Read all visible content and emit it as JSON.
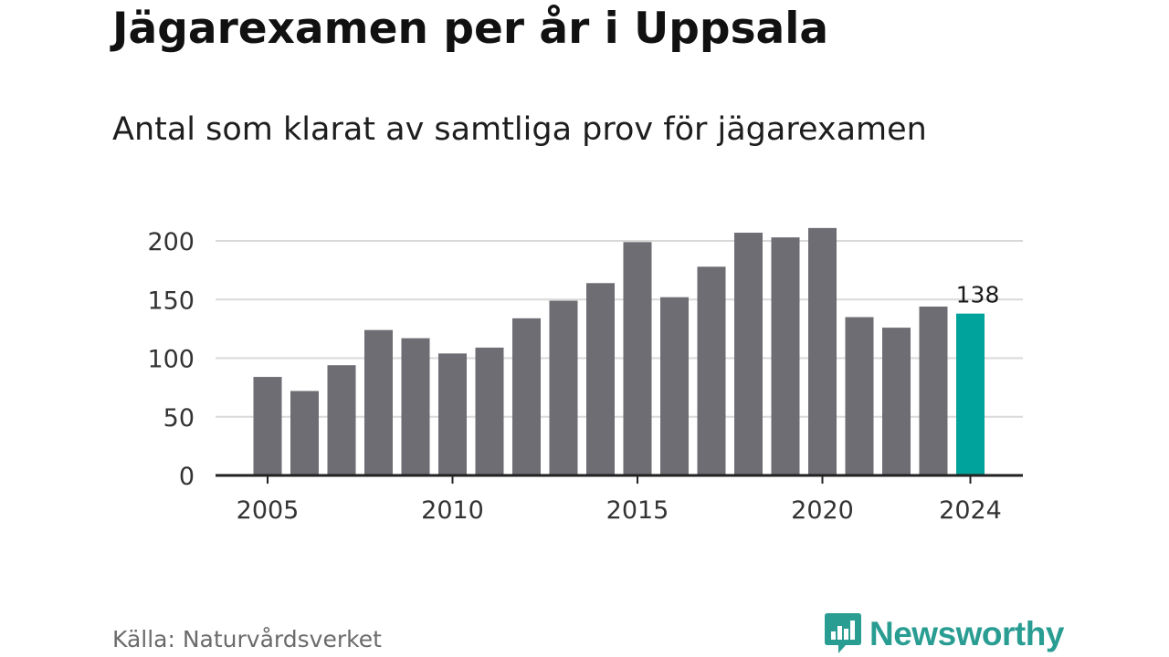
{
  "title": "Jägarexamen per år i Uppsala",
  "subtitle": "Antal som klarat av samtliga prov för jägarexamen",
  "source": "Källa: Naturvårdsverket",
  "brand": {
    "name": "Newsworthy",
    "icon": "newsworthy-logo-icon",
    "color": "#2a9d93"
  },
  "colors": {
    "bar": "#6d6d73",
    "highlight": "#00a39b",
    "grid": "#d9d9d9",
    "axis": "#222222"
  },
  "chart_data": {
    "type": "bar",
    "title": "Jägarexamen per år i Uppsala",
    "subtitle": "Antal som klarat av samtliga prov för jägarexamen",
    "xlabel": "",
    "ylabel": "",
    "x": [
      2005,
      2006,
      2007,
      2008,
      2009,
      2010,
      2011,
      2012,
      2013,
      2014,
      2015,
      2016,
      2017,
      2018,
      2019,
      2020,
      2021,
      2022,
      2023,
      2024
    ],
    "values": [
      84,
      72,
      94,
      124,
      117,
      104,
      109,
      134,
      149,
      164,
      199,
      152,
      178,
      207,
      203,
      211,
      135,
      126,
      144,
      138
    ],
    "x_ticks": [
      2005,
      2010,
      2015,
      2020,
      2024
    ],
    "y_ticks": [
      0,
      50,
      100,
      150,
      200
    ],
    "ylim": [
      0,
      200
    ],
    "grid": true,
    "highlight": {
      "x": 2024,
      "label": "138"
    }
  }
}
